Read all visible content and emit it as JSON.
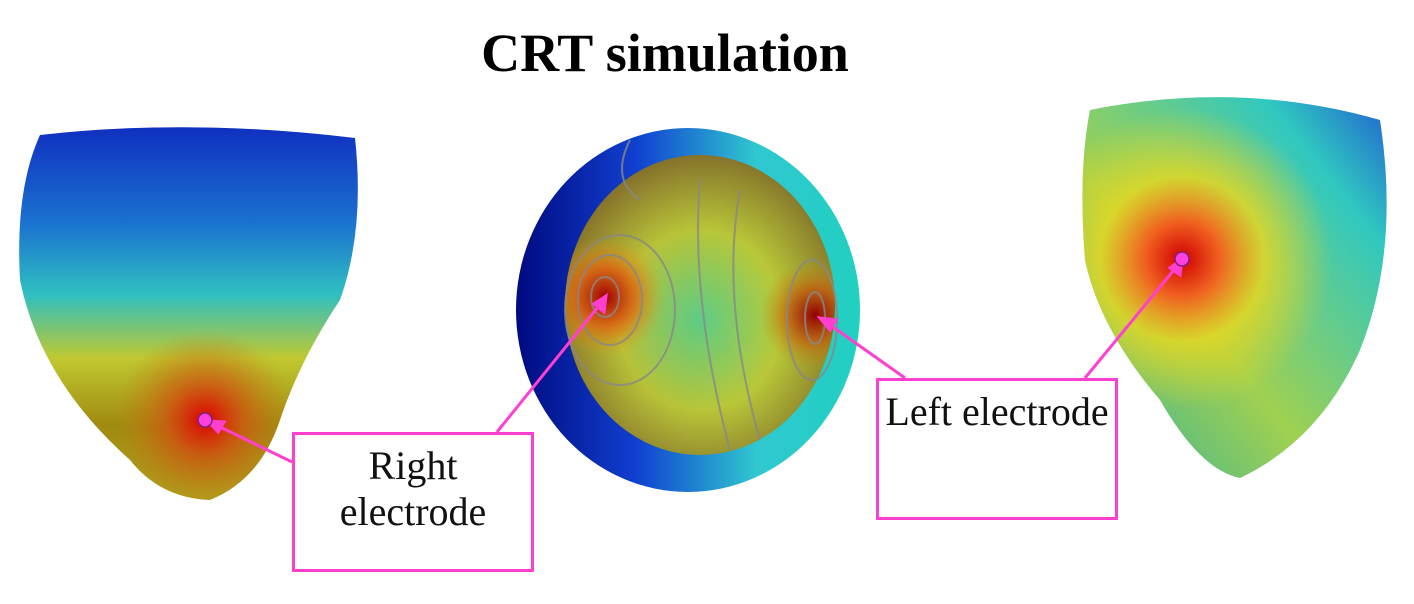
{
  "title": "CRT simulation",
  "labels": {
    "right_electrode": "Right electrode",
    "left_electrode": "Left electrode"
  },
  "colors": {
    "annotation": "#ff3fd0",
    "colormap": [
      "#00008b",
      "#0050d0",
      "#20c8d0",
      "#a0e040",
      "#f0e020",
      "#f08020",
      "#c00000"
    ]
  }
}
